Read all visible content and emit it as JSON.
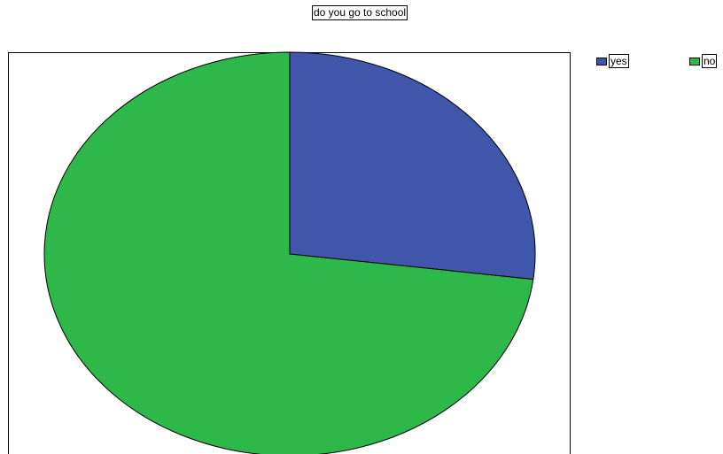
{
  "chart_data": {
    "type": "pie",
    "title": "do you go to school",
    "categories": [
      "yes",
      "no"
    ],
    "values": [
      27,
      73
    ],
    "colors": [
      "#3f56ab",
      "#2eb84a"
    ],
    "legend_position": "top-right",
    "start_angle_deg": 0,
    "direction": "clockwise"
  }
}
